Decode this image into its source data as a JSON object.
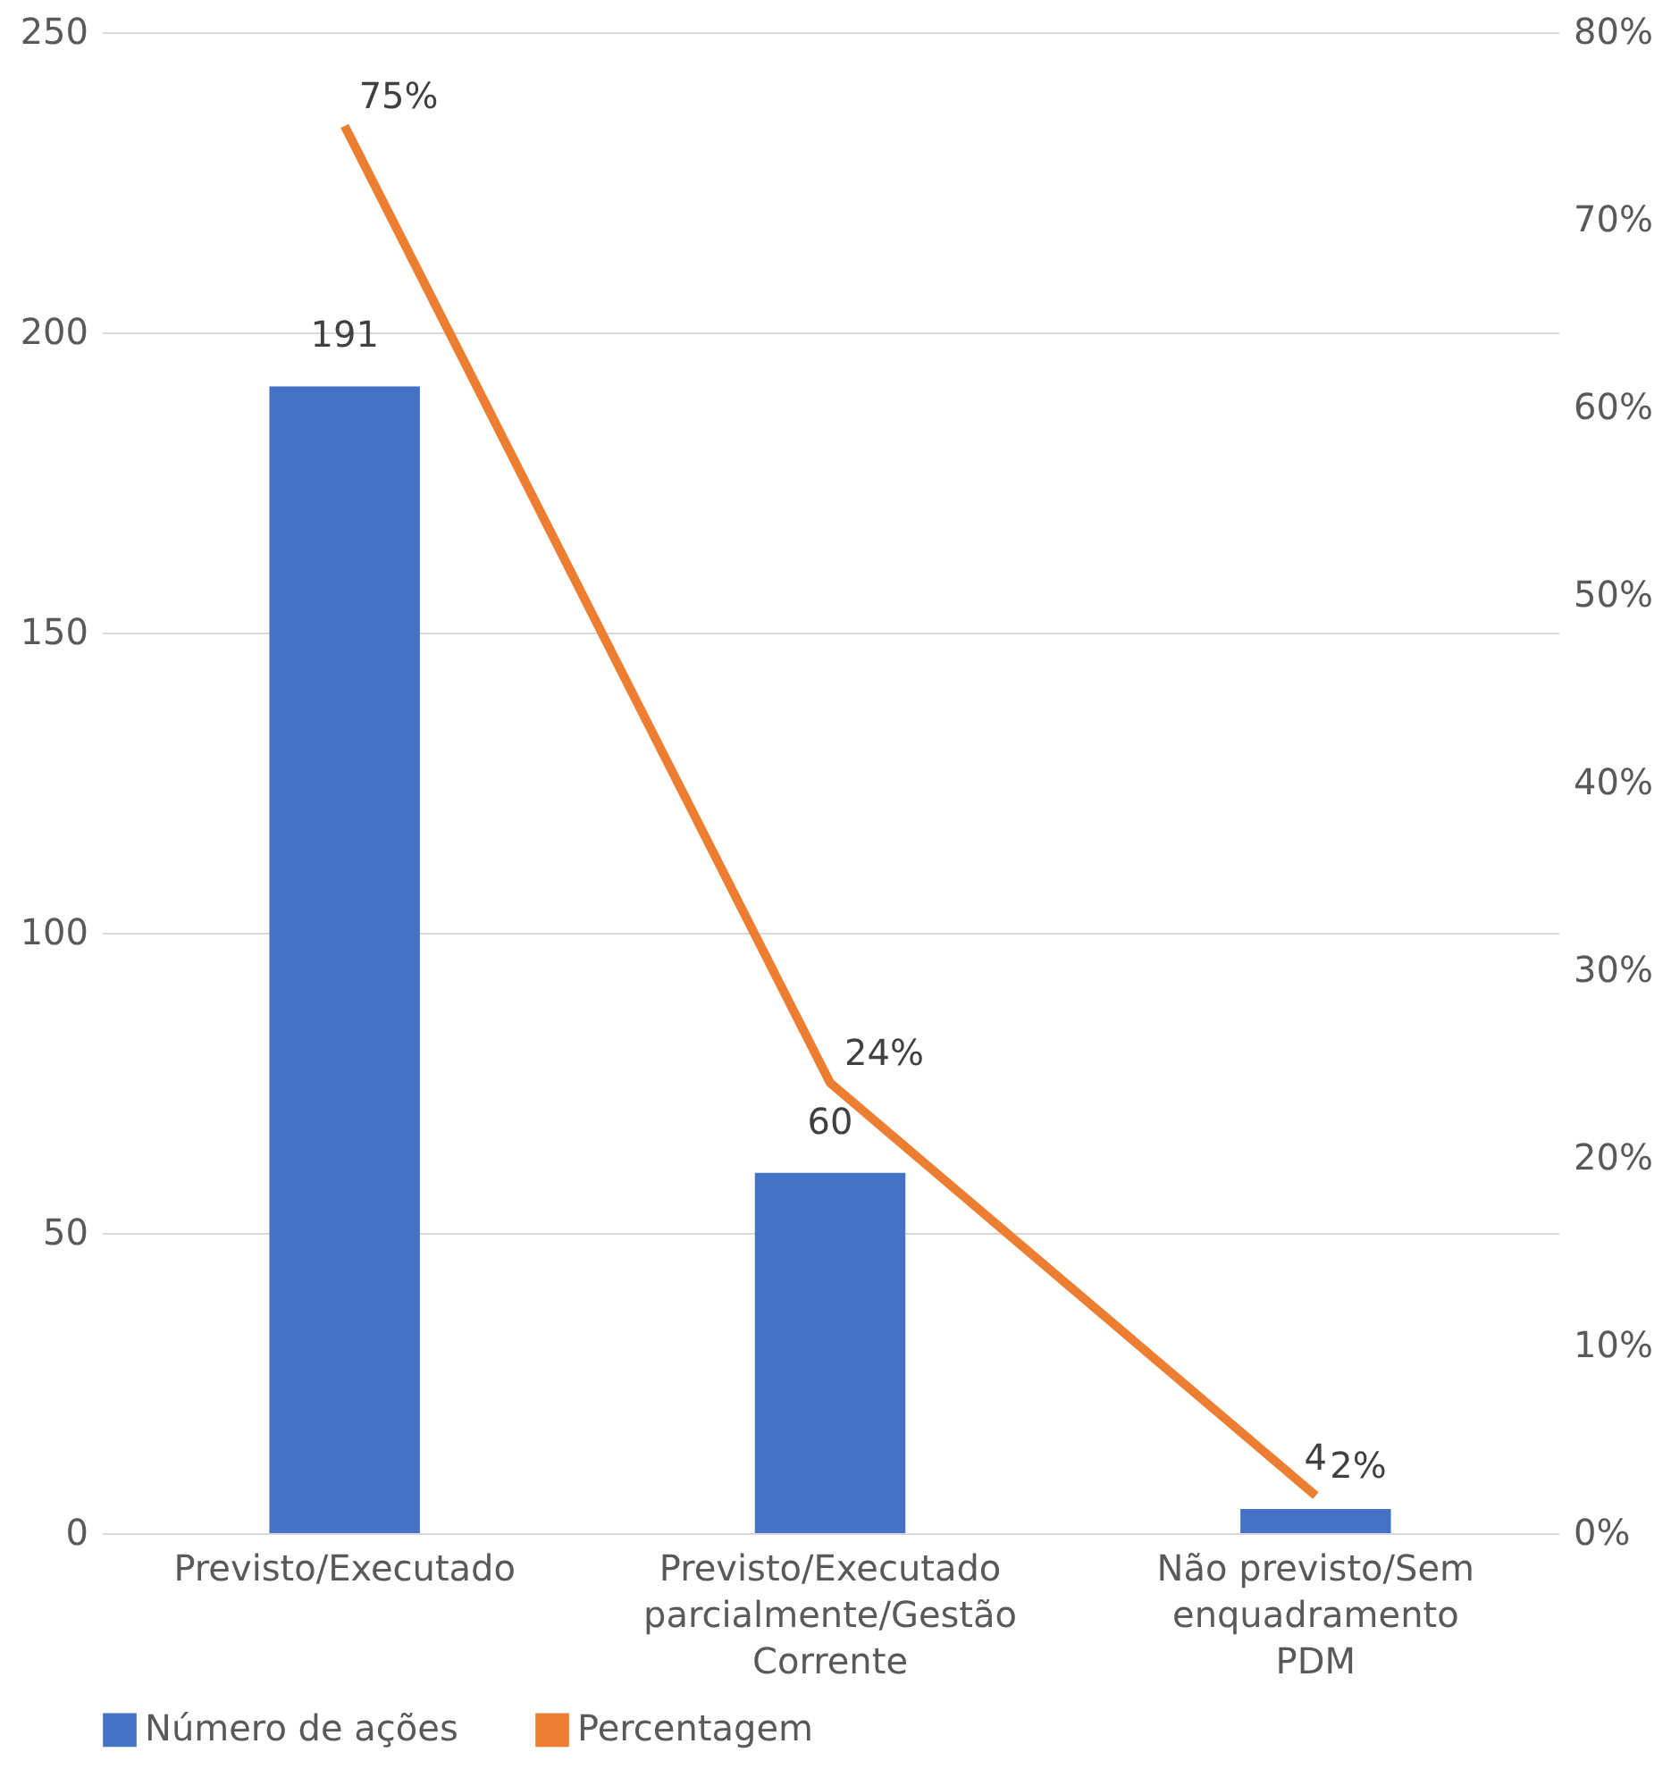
{
  "chart_data": {
    "type": "bar",
    "categories": [
      "Previsto/Executado",
      "Previsto/Executado parcialmente/Gestão Corrente",
      "Não previsto/Sem enquadramento PDM"
    ],
    "series": [
      {
        "name": "Número de ações",
        "color": "#4472c4",
        "values": [
          191,
          60,
          4
        ],
        "value_labels": [
          "191",
          "60",
          "4"
        ]
      },
      {
        "name": "Percentagem",
        "type": "line",
        "axis": "y2",
        "color": "#ed7d31",
        "values": [
          75,
          24,
          2
        ],
        "value_labels": [
          "75%",
          "24%",
          "2%"
        ]
      }
    ],
    "ylim": [
      0,
      250
    ],
    "yticks": [
      0,
      50,
      100,
      150,
      200,
      250
    ],
    "y2lim": [
      0,
      80
    ],
    "y2ticks": [
      {
        "value": 0,
        "label": "0%"
      },
      {
        "value": 10,
        "label": "10%"
      },
      {
        "value": 20,
        "label": "20%"
      },
      {
        "value": 30,
        "label": "30%"
      },
      {
        "value": 40,
        "label": "40%"
      },
      {
        "value": 50,
        "label": "50%"
      },
      {
        "value": 60,
        "label": "60%"
      },
      {
        "value": 70,
        "label": "70%"
      },
      {
        "value": 80,
        "label": "80%"
      }
    ],
    "grid": "y",
    "legend": "bottom",
    "marker": "none",
    "line_style": "solid"
  }
}
